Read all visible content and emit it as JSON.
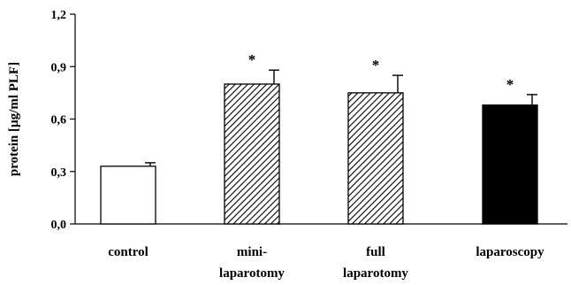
{
  "chart_data": {
    "type": "bar",
    "ylabel": "protein [µg/ml PLF]",
    "xlabel": "",
    "ylim": [
      0,
      1.2
    ],
    "yticks": [
      "0,0",
      "0,3",
      "0,6",
      "0,9",
      "1,2"
    ],
    "ytick_values": [
      0,
      0.3,
      0.6,
      0.9,
      1.2
    ],
    "categories": [
      {
        "lines": [
          "control"
        ]
      },
      {
        "lines": [
          "mini-",
          "laparotomy"
        ]
      },
      {
        "lines": [
          "full",
          "laparotomy"
        ]
      },
      {
        "lines": [
          "laparoscopy"
        ]
      }
    ],
    "values": [
      0.33,
      0.8,
      0.75,
      0.68
    ],
    "errors": [
      0.02,
      0.08,
      0.1,
      0.06
    ],
    "annotations": [
      "",
      "*",
      "*",
      "*"
    ],
    "fills": [
      "white",
      "hatch",
      "hatch",
      "black"
    ],
    "grid": false,
    "legend": "none",
    "colors": {
      "bar_solid": "#000000",
      "bar_open": "#ffffff",
      "hatch": "#000000",
      "axis": "#000000"
    }
  }
}
